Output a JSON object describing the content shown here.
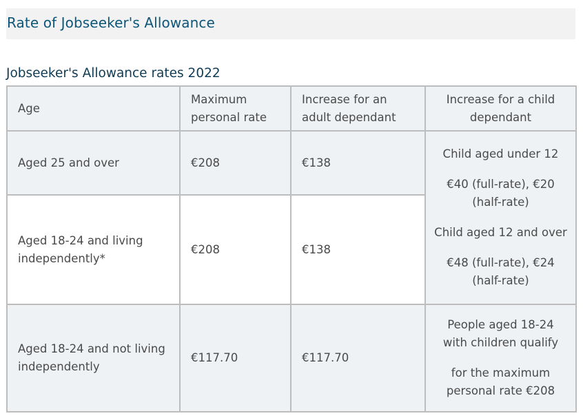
{
  "section": {
    "heading": "Rate of Jobseeker's Allowance"
  },
  "table": {
    "caption": "Jobseeker's Allowance rates 2022",
    "headers": {
      "age": "Age",
      "max_personal_rate_line1": "Maximum",
      "max_personal_rate_line2": "personal rate",
      "adult_dependant_line1": "Increase for an",
      "adult_dependant_line2": "adult dependant",
      "child_dependant_line1": "Increase for a child",
      "child_dependant_line2": "dependant"
    },
    "rows": [
      {
        "age_line1": "Aged 25 and over",
        "max_personal_rate": "€208",
        "adult_dependant": "€138"
      },
      {
        "age_line1": "Aged 18-24 and living",
        "age_line2": "independently*",
        "max_personal_rate": "€208",
        "adult_dependant": "€138"
      },
      {
        "age_line1": "Aged 18-24 and not living",
        "age_line2": "independently",
        "max_personal_rate": "€117.70",
        "adult_dependant": "€117.70"
      }
    ],
    "child_dependant_merged": {
      "under12_label": "Child aged under 12",
      "under12_rate_line1": "€40 (full-rate), €20",
      "under12_rate_line2": "(half-rate)",
      "over12_label": "Child aged 12 and over",
      "over12_rate_line1": "€48 (full-rate), €24",
      "over12_rate_line2": "(half-rate)"
    },
    "child_dependant_row3": {
      "line1": "People aged 18-24",
      "line2": "with children qualify",
      "line3": "for the maximum",
      "line4": "personal rate €208"
    }
  },
  "colors": {
    "heading_text": "#0d5679",
    "caption_text": "#103b55",
    "heading_bg": "#f2f2f2",
    "row_light_bg": "#eff2f5",
    "border": "#bdbdbd",
    "body_text": "#4a4a4a"
  }
}
